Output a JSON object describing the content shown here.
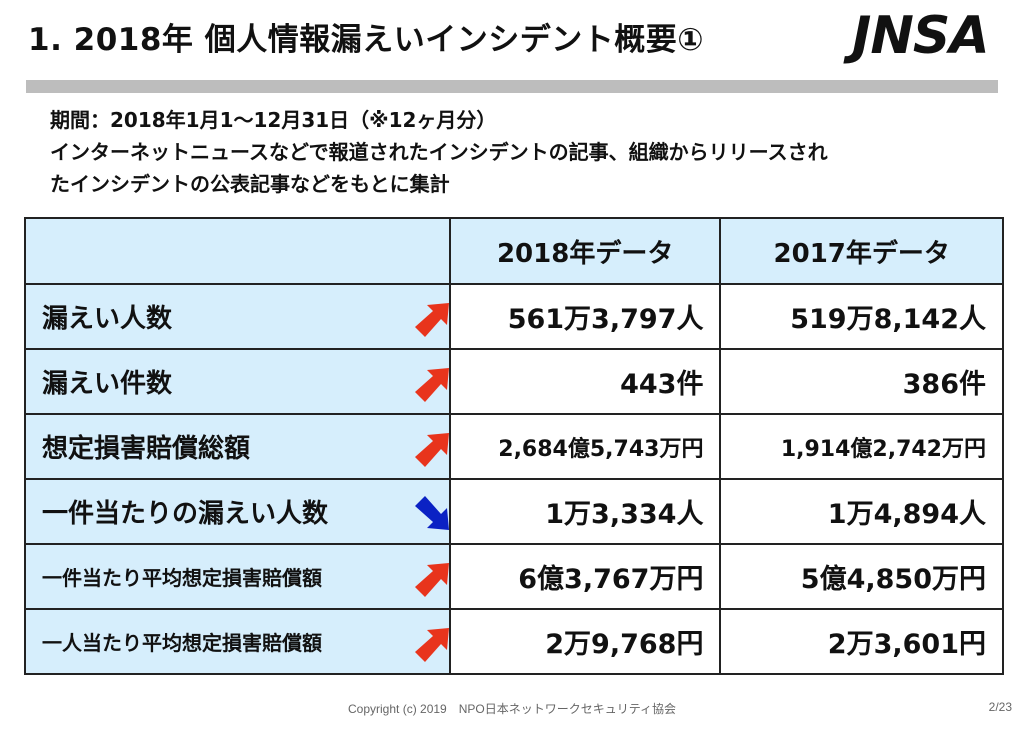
{
  "slide": {
    "title": "1. 2018年 個人情報漏えいインシデント概要①",
    "logo_text": "JNSA",
    "description_line1": "期間：2018年1月1～12月31日（※12ヶ月分）",
    "description_line2": "インターネットニュースなどで報道されたインシデントの記事、組織からリリースされ",
    "description_line3": "たインシデントの公表記事などをもとに集計"
  },
  "table": {
    "headers": [
      "",
      "2018年データ",
      "2017年データ"
    ],
    "rows": [
      {
        "label": "漏えい人数",
        "trend": "up",
        "v2018": "561万3,797人",
        "v2017": "519万8,142人"
      },
      {
        "label": "漏えい件数",
        "trend": "up",
        "v2018": "443件",
        "v2017": "386件"
      },
      {
        "label": "想定損害賠償総額",
        "trend": "up",
        "v2018": "2,684億5,743万円",
        "v2017": "1,914億2,742万円"
      },
      {
        "label": "一件当たりの漏えい人数",
        "trend": "down",
        "v2018": "1万3,334人",
        "v2017": "1万4,894人"
      },
      {
        "label": "一件当たり平均想定損害賠償額",
        "trend": "up",
        "v2018": "6億3,767万円",
        "v2017": "5億4,850万円"
      },
      {
        "label": "一人当たり平均想定損害賠償額",
        "trend": "up",
        "v2018": "2万9,768円",
        "v2017": "2万3,601円"
      }
    ]
  },
  "icons": {
    "up": "arrow-up-right-icon",
    "down": "arrow-down-right-icon"
  },
  "colors": {
    "header_bg": "#d6eefc",
    "up_arrow": "#e8341c",
    "down_arrow": "#0b22c4"
  },
  "footer": {
    "copyright": "Copyright (c) 2019　NPO日本ネットワークセキュリティ協会",
    "page_number": "2/23"
  }
}
